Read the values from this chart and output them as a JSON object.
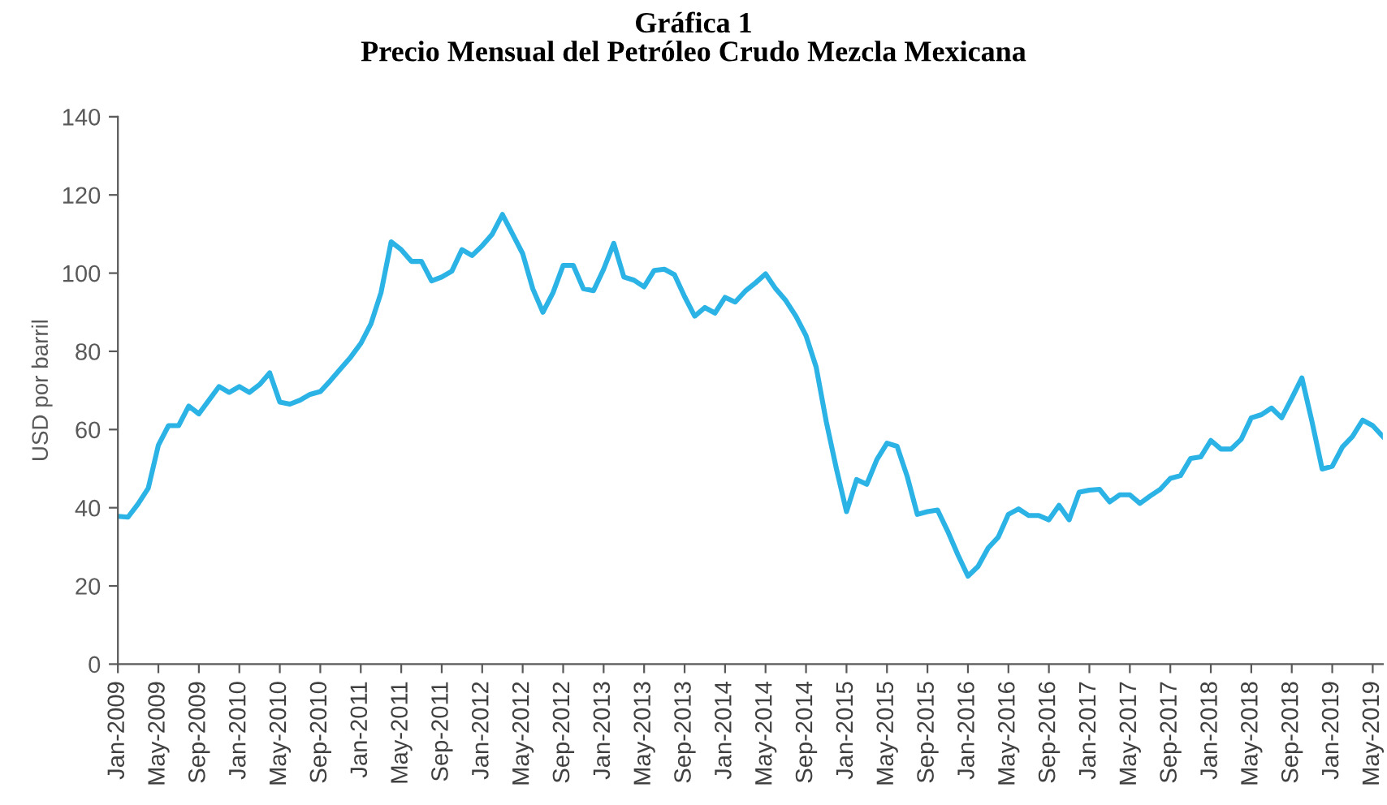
{
  "chart_data": {
    "type": "line",
    "title": "Gráfica 1\nPrecio Mensual del Petróleo Crudo Mezcla Mexicana",
    "ylabel": "USD por barril",
    "x": [
      "2009-01",
      "2009-02",
      "2009-03",
      "2009-04",
      "2009-05",
      "2009-06",
      "2009-07",
      "2009-08",
      "2009-09",
      "2009-10",
      "2009-11",
      "2009-12",
      "2010-01",
      "2010-02",
      "2010-03",
      "2010-04",
      "2010-05",
      "2010-06",
      "2010-07",
      "2010-08",
      "2010-09",
      "2010-10",
      "2010-11",
      "2010-12",
      "2011-01",
      "2011-02",
      "2011-03",
      "2011-04",
      "2011-05",
      "2011-06",
      "2011-07",
      "2011-08",
      "2011-09",
      "2011-10",
      "2011-11",
      "2011-12",
      "2012-01",
      "2012-02",
      "2012-03",
      "2012-04",
      "2012-05",
      "2012-06",
      "2012-07",
      "2012-08",
      "2012-09",
      "2012-10",
      "2012-11",
      "2012-12",
      "2013-01",
      "2013-02",
      "2013-03",
      "2013-04",
      "2013-05",
      "2013-06",
      "2013-07",
      "2013-08",
      "2013-09",
      "2013-10",
      "2013-11",
      "2013-12",
      "2014-01",
      "2014-02",
      "2014-03",
      "2014-04",
      "2014-05",
      "2014-06",
      "2014-07",
      "2014-08",
      "2014-09",
      "2014-10",
      "2014-11",
      "2014-12",
      "2015-01",
      "2015-02",
      "2015-03",
      "2015-04",
      "2015-05",
      "2015-06",
      "2015-07",
      "2015-08",
      "2015-09",
      "2015-10",
      "2015-11",
      "2015-12",
      "2016-01",
      "2016-02",
      "2016-03",
      "2016-04",
      "2016-05",
      "2016-06",
      "2016-07",
      "2016-08",
      "2016-09",
      "2016-10",
      "2016-11",
      "2016-12",
      "2017-01",
      "2017-02",
      "2017-03",
      "2017-04",
      "2017-05",
      "2017-06",
      "2017-07",
      "2017-08",
      "2017-09",
      "2017-10",
      "2017-11",
      "2017-12",
      "2018-01",
      "2018-02",
      "2018-03",
      "2018-04",
      "2018-05",
      "2018-06",
      "2018-07",
      "2018-08",
      "2018-09",
      "2018-10",
      "2018-11",
      "2018-12",
      "2019-01",
      "2019-02",
      "2019-03",
      "2019-04",
      "2019-05",
      "2019-06"
    ],
    "series": [
      {
        "color": "#2bb3e6",
        "values": [
          37.8,
          37.6,
          41,
          45,
          56,
          61,
          61,
          66,
          64,
          67.5,
          71,
          69.5,
          71,
          69.5,
          71.5,
          74.5,
          67,
          66.5,
          67.5,
          69,
          69.7,
          72.5,
          75.5,
          78.5,
          82,
          87,
          95,
          108,
          106,
          103,
          103,
          98,
          99,
          100.5,
          106,
          104.5,
          107,
          110,
          115,
          110,
          105,
          96,
          90,
          95,
          102,
          102,
          96,
          95.5,
          101,
          107.6,
          99,
          98.2,
          96.5,
          100.7,
          101,
          99.6,
          94,
          89,
          91.2,
          89.8,
          93.8,
          92.6,
          95.4,
          97.5,
          99.8,
          96,
          93,
          89,
          84,
          76,
          62,
          50,
          39,
          47.2,
          46,
          52.3,
          56.5,
          55.7,
          48,
          38.3,
          39,
          39.4,
          34,
          28,
          22.5,
          25,
          29.7,
          32.5,
          38.3,
          39.7,
          38,
          38,
          36.9,
          40.6,
          36.9,
          44,
          44.5,
          44.7,
          41.5,
          43.3,
          43.3,
          41.1,
          43,
          44.7,
          47.5,
          48.2,
          52.6,
          53,
          57.2,
          55,
          55,
          57.5,
          63,
          63.8,
          65.5,
          63,
          68,
          73.2,
          62,
          49.9,
          50.6,
          55.5,
          58.2,
          62.4,
          61,
          58.2
        ]
      }
    ],
    "xlim": [
      "2009-01",
      "2019-06"
    ],
    "xticks": [
      {
        "value": "2009-01",
        "label": "Jan-2009"
      },
      {
        "value": "2009-05",
        "label": "May-2009"
      },
      {
        "value": "2009-09",
        "label": "Sep-2009"
      },
      {
        "value": "2010-01",
        "label": "Jan-2010"
      },
      {
        "value": "2010-05",
        "label": "May-2010"
      },
      {
        "value": "2010-09",
        "label": "Sep-2010"
      },
      {
        "value": "2011-01",
        "label": "Jan-2011"
      },
      {
        "value": "2011-05",
        "label": "May-2011"
      },
      {
        "value": "2011-09",
        "label": "Sep-2011"
      },
      {
        "value": "2012-01",
        "label": "Jan-2012"
      },
      {
        "value": "2012-05",
        "label": "May-2012"
      },
      {
        "value": "2012-09",
        "label": "Sep-2012"
      },
      {
        "value": "2013-01",
        "label": "Jan-2013"
      },
      {
        "value": "2013-05",
        "label": "May-2013"
      },
      {
        "value": "2013-09",
        "label": "Sep-2013"
      },
      {
        "value": "2014-01",
        "label": "Jan-2014"
      },
      {
        "value": "2014-05",
        "label": "May-2014"
      },
      {
        "value": "2014-09",
        "label": "Sep-2014"
      },
      {
        "value": "2015-01",
        "label": "Jan-2015"
      },
      {
        "value": "2015-05",
        "label": "May-2015"
      },
      {
        "value": "2015-09",
        "label": "Sep-2015"
      },
      {
        "value": "2016-01",
        "label": "Jan-2016"
      },
      {
        "value": "2016-05",
        "label": "May-2016"
      },
      {
        "value": "2016-09",
        "label": "Sep-2016"
      },
      {
        "value": "2017-01",
        "label": "Jan-2017"
      },
      {
        "value": "2017-05",
        "label": "May-2017"
      },
      {
        "value": "2017-09",
        "label": "Sep-2017"
      },
      {
        "value": "2018-01",
        "label": "Jan-2018"
      },
      {
        "value": "2018-05",
        "label": "May-2018"
      },
      {
        "value": "2018-09",
        "label": "Sep-2018"
      },
      {
        "value": "2019-01",
        "label": "Jan-2019"
      },
      {
        "value": "2019-05",
        "label": "May-2019"
      }
    ],
    "ylim": [
      0,
      140
    ],
    "yticks": [
      0,
      20,
      40,
      60,
      80,
      100,
      120,
      140
    ],
    "grid": false,
    "legend": false,
    "marker": "none",
    "line_style": "solid"
  }
}
